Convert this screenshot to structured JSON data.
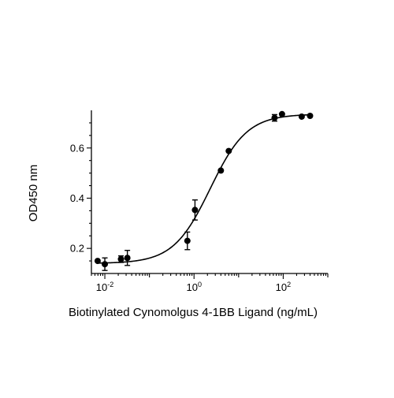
{
  "chart_data": {
    "type": "scatter",
    "xscale": "log",
    "xlabel": "Biotinylated Cynomolgus 4-1BB Ligand (ng/mL)",
    "ylabel": "OD450 nm",
    "xlim": [
      0.005,
      1000
    ],
    "ylim": [
      0.1,
      0.75
    ],
    "x_ticks": [
      {
        "value": 0.01,
        "base": "10",
        "exp": "-2"
      },
      {
        "value": 1,
        "base": "10",
        "exp": "0"
      },
      {
        "value": 100,
        "base": "10",
        "exp": "2"
      }
    ],
    "y_ticks": [
      {
        "value": 0.2,
        "label": "0.2"
      },
      {
        "value": 0.4,
        "label": "0.4"
      },
      {
        "value": 0.6,
        "label": "0.6"
      }
    ],
    "points": [
      {
        "x": 0.0069,
        "y": 0.15,
        "err": 0.0
      },
      {
        "x": 0.01,
        "y": 0.137,
        "err": 0.025
      },
      {
        "x": 0.023,
        "y": 0.157,
        "err": 0.013
      },
      {
        "x": 0.032,
        "y": 0.162,
        "err": 0.03
      },
      {
        "x": 0.71,
        "y": 0.23,
        "err": 0.035
      },
      {
        "x": 1.05,
        "y": 0.353,
        "err": 0.04
      },
      {
        "x": 4.0,
        "y": 0.51,
        "err": 0.0
      },
      {
        "x": 6.0,
        "y": 0.588,
        "err": 0.0
      },
      {
        "x": 64,
        "y": 0.72,
        "err": 0.013
      },
      {
        "x": 94,
        "y": 0.735,
        "err": 0.0
      },
      {
        "x": 260,
        "y": 0.725,
        "err": 0.0
      },
      {
        "x": 400,
        "y": 0.728,
        "err": 0.0
      }
    ],
    "fit": {
      "type": "4PL",
      "bottom": 0.14,
      "top": 0.735,
      "ec50": 2.3,
      "hill": 1.05
    },
    "grid": false,
    "legend": "none"
  }
}
